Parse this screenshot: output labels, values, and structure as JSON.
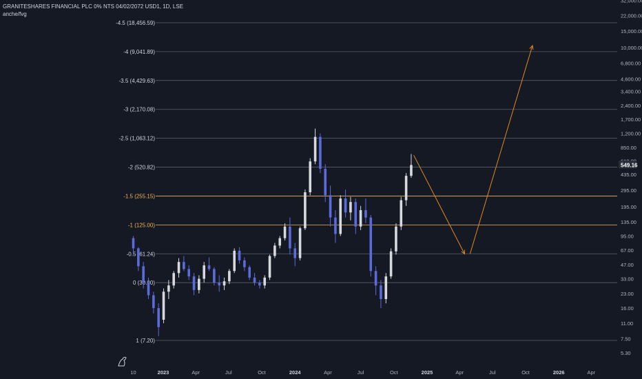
{
  "header": {
    "symbol_line": "GRANITESHARES FINANCIAL PLC 0% NTS 04/02/2072 USD1, 1D, LSE",
    "indicator_line": "anche/fvg"
  },
  "colors": {
    "background": "#151924",
    "fib_line": "#5d606b",
    "fib_highlight": "#f0b65a",
    "candle": "#d8d9df",
    "candle_down": "#5b6bd9",
    "arrow": "#e08a1e",
    "price_badge": "#2a2e39",
    "axis_text": "#b2b5be"
  },
  "chart_data": {
    "type": "candlestick",
    "scale": "log",
    "price_axis_ticks": [
      "32,000.00",
      "22,000.00",
      "15,000.00",
      "10,000.00",
      "6,800.00",
      "4,600.00",
      "3,400.00",
      "2,400.00",
      "1,700.00",
      "1,200.00",
      "850.00",
      "610.00",
      "435.00",
      "295.00",
      "195.00",
      "135.00",
      "95.00",
      "67.00",
      "47.00",
      "33.00",
      "23.00",
      "16.00",
      "11.00",
      "7.50",
      "5.30"
    ],
    "current_price": "549.16",
    "time_axis_ticks": [
      {
        "label": "10",
        "bold": false
      },
      {
        "label": "2023",
        "bold": true
      },
      {
        "label": "Apr",
        "bold": false
      },
      {
        "label": "Jul",
        "bold": false
      },
      {
        "label": "Oct",
        "bold": false
      },
      {
        "label": "2024",
        "bold": true
      },
      {
        "label": "Apr",
        "bold": false
      },
      {
        "label": "Jul",
        "bold": false
      },
      {
        "label": "Oct",
        "bold": false
      },
      {
        "label": "2025",
        "bold": true
      },
      {
        "label": "Apr",
        "bold": false
      },
      {
        "label": "Jul",
        "bold": false
      },
      {
        "label": "Oct",
        "bold": false
      },
      {
        "label": "2026",
        "bold": true
      },
      {
        "label": "Apr",
        "bold": false
      }
    ],
    "fib_levels": [
      {
        "label": "-4.5 (18,456.59)",
        "price": 18456.59,
        "highlight": false
      },
      {
        "label": "-4 (9,041.89)",
        "price": 9041.89,
        "highlight": false
      },
      {
        "label": "-3.5 (4,429.63)",
        "price": 4429.63,
        "highlight": false
      },
      {
        "label": "-3 (2,170.08)",
        "price": 2170.08,
        "highlight": false
      },
      {
        "label": "-2.5 (1,063.12)",
        "price": 1063.12,
        "highlight": false
      },
      {
        "label": "-2 (520.82)",
        "price": 520.82,
        "highlight": false
      },
      {
        "label": "-1.5 (255.15)",
        "price": 255.15,
        "highlight": true
      },
      {
        "label": "-1 (125.00)",
        "price": 125.0,
        "highlight": true
      },
      {
        "label": "-0.5 (61.24)",
        "price": 61.24,
        "highlight": false
      },
      {
        "label": "0 (30.00)",
        "price": 30.0,
        "highlight": false
      },
      {
        "label": "1 (7.20)",
        "price": 7.2,
        "highlight": false
      }
    ],
    "projection_path": [
      {
        "date": "2024-11-25",
        "price": 700
      },
      {
        "date": "2025-04-15",
        "price": 61
      },
      {
        "date": "2025-04-30",
        "price": 61
      },
      {
        "date": "2025-10-20",
        "price": 10500
      }
    ],
    "candles_approx": [
      [
        "2022-10-10",
        90,
        95,
        60,
        70
      ],
      [
        "2022-10-24",
        70,
        72,
        40,
        45
      ],
      [
        "2022-11-07",
        45,
        50,
        26,
        30
      ],
      [
        "2022-11-21",
        30,
        34,
        20,
        22
      ],
      [
        "2022-12-05",
        22,
        24,
        14,
        16
      ],
      [
        "2022-12-19",
        16,
        18,
        8,
        10
      ],
      [
        "2023-01-02",
        12,
        26,
        11,
        24
      ],
      [
        "2023-01-16",
        24,
        32,
        20,
        28
      ],
      [
        "2023-01-30",
        28,
        40,
        26,
        38
      ],
      [
        "2023-02-13",
        38,
        55,
        34,
        50
      ],
      [
        "2023-02-27",
        50,
        58,
        40,
        42
      ],
      [
        "2023-03-13",
        42,
        46,
        32,
        35
      ],
      [
        "2023-03-27",
        35,
        38,
        22,
        25
      ],
      [
        "2023-04-10",
        25,
        36,
        23,
        33
      ],
      [
        "2023-04-24",
        33,
        50,
        30,
        46
      ],
      [
        "2023-05-08",
        46,
        56,
        40,
        42
      ],
      [
        "2023-05-22",
        42,
        44,
        28,
        30
      ],
      [
        "2023-06-05",
        30,
        36,
        24,
        28
      ],
      [
        "2023-06-19",
        28,
        34,
        25,
        31
      ],
      [
        "2023-07-03",
        31,
        42,
        29,
        40
      ],
      [
        "2023-07-17",
        40,
        70,
        38,
        66
      ],
      [
        "2023-07-31",
        66,
        72,
        48,
        52
      ],
      [
        "2023-08-14",
        52,
        56,
        40,
        44
      ],
      [
        "2023-08-28",
        44,
        46,
        32,
        34
      ],
      [
        "2023-09-11",
        34,
        38,
        28,
        30
      ],
      [
        "2023-09-25",
        30,
        32,
        26,
        28
      ],
      [
        "2023-10-09",
        28,
        36,
        26,
        34
      ],
      [
        "2023-10-23",
        34,
        60,
        32,
        58
      ],
      [
        "2023-11-06",
        58,
        80,
        55,
        75
      ],
      [
        "2023-11-20",
        75,
        95,
        70,
        90
      ],
      [
        "2023-12-04",
        90,
        130,
        85,
        120
      ],
      [
        "2023-12-18",
        120,
        150,
        60,
        70
      ],
      [
        "2024-01-01",
        70,
        80,
        45,
        55
      ],
      [
        "2024-01-15",
        55,
        120,
        52,
        115
      ],
      [
        "2024-01-29",
        115,
        300,
        110,
        280
      ],
      [
        "2024-02-12",
        280,
        650,
        260,
        600
      ],
      [
        "2024-02-26",
        600,
        1350,
        560,
        1100
      ],
      [
        "2024-03-11",
        1100,
        1200,
        450,
        500
      ],
      [
        "2024-03-25",
        500,
        560,
        220,
        260
      ],
      [
        "2024-04-08",
        260,
        330,
        120,
        150
      ],
      [
        "2024-04-22",
        150,
        180,
        80,
        100
      ],
      [
        "2024-05-06",
        100,
        260,
        95,
        240
      ],
      [
        "2024-05-20",
        240,
        300,
        150,
        170
      ],
      [
        "2024-06-03",
        170,
        250,
        140,
        220
      ],
      [
        "2024-06-17",
        220,
        240,
        100,
        120
      ],
      [
        "2024-07-01",
        120,
        200,
        110,
        180
      ],
      [
        "2024-07-15",
        180,
        240,
        130,
        150
      ],
      [
        "2024-07-29",
        150,
        160,
        35,
        40
      ],
      [
        "2024-08-12",
        40,
        45,
        22,
        28
      ],
      [
        "2024-08-26",
        28,
        32,
        16,
        20
      ],
      [
        "2024-09-09",
        20,
        38,
        18,
        35
      ],
      [
        "2024-09-23",
        35,
        70,
        33,
        65
      ],
      [
        "2024-10-07",
        65,
        130,
        60,
        120
      ],
      [
        "2024-10-21",
        120,
        250,
        110,
        230
      ],
      [
        "2024-11-04",
        230,
        450,
        200,
        420
      ],
      [
        "2024-11-18",
        420,
        720,
        400,
        549
      ]
    ]
  }
}
